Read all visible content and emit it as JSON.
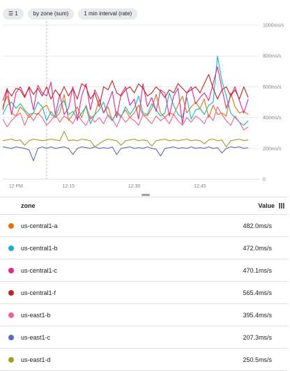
{
  "filters": {
    "filter_count": "1",
    "group_by": "by zone (sum)",
    "interval": "1 min interval (rate)"
  },
  "chart_data": {
    "type": "line",
    "y_ticks": [
      {
        "value": 1000,
        "label": "1000ms/s"
      },
      {
        "value": 800,
        "label": "800ms/s"
      },
      {
        "value": 600,
        "label": "600ms/s"
      },
      {
        "value": 400,
        "label": "400ms/s"
      },
      {
        "value": 200,
        "label": "200ms/s"
      },
      {
        "value": 0,
        "label": "0"
      }
    ],
    "ylim": [
      0,
      1000
    ],
    "x_ticks": [
      {
        "minute": 3,
        "label": "12 PM"
      },
      {
        "minute": 15,
        "label": "12:15"
      },
      {
        "minute": 30,
        "label": "12:30"
      },
      {
        "minute": 45,
        "label": "12:45"
      }
    ],
    "xlim": [
      0,
      56
    ],
    "cursor_minute": 10,
    "grid": true,
    "series": [
      {
        "name": "us-central1-a",
        "color": "#e8710a",
        "values": [
          470,
          540,
          430,
          410,
          470,
          440,
          400,
          430,
          420,
          460,
          480,
          420,
          400,
          430,
          550,
          380,
          420,
          470,
          400,
          480,
          390,
          420,
          520,
          430,
          470,
          380,
          440,
          410,
          450,
          400,
          430,
          480,
          420,
          410,
          460,
          550,
          430,
          400,
          430,
          420,
          480,
          540,
          430,
          470,
          500,
          460,
          520,
          400,
          480,
          420,
          430,
          410,
          560,
          470,
          430,
          440,
          420
        ]
      },
      {
        "name": "us-central1-b",
        "color": "#12b5cb",
        "values": [
          420,
          480,
          500,
          460,
          490,
          450,
          420,
          430,
          500,
          470,
          380,
          440,
          400,
          480,
          510,
          420,
          440,
          390,
          430,
          470,
          360,
          420,
          450,
          500,
          410,
          380,
          430,
          400,
          470,
          420,
          460,
          540,
          430,
          420,
          490,
          450,
          410,
          430,
          560,
          480,
          420,
          400,
          530,
          390,
          450,
          460,
          420,
          480,
          500,
          800,
          640,
          540,
          430,
          400,
          370,
          350,
          380
        ]
      },
      {
        "name": "us-central1-c",
        "color": "#e52592",
        "values": [
          510,
          590,
          420,
          560,
          600,
          540,
          590,
          450,
          610,
          560,
          540,
          630,
          420,
          550,
          420,
          460,
          600,
          380,
          540,
          620,
          450,
          580,
          520,
          430,
          490,
          570,
          400,
          550,
          600,
          480,
          520,
          390,
          620,
          470,
          530,
          440,
          580,
          560,
          410,
          540,
          590,
          360,
          560,
          600,
          490,
          530,
          560,
          510,
          620,
          730,
          590,
          460,
          540,
          600,
          510,
          430,
          520
        ]
      },
      {
        "name": "us-central1-f",
        "color": "#c5221f",
        "values": [
          450,
          580,
          540,
          590,
          580,
          530,
          600,
          550,
          590,
          540,
          600,
          520,
          580,
          540,
          600,
          540,
          590,
          520,
          620,
          600,
          520,
          560,
          470,
          600,
          580,
          640,
          560,
          540,
          580,
          600,
          560,
          620,
          590,
          540,
          560,
          600,
          570,
          530,
          580,
          560,
          620,
          590,
          560,
          580,
          600,
          560,
          620,
          680,
          590,
          520,
          580,
          600,
          540,
          580,
          520,
          600,
          530
        ]
      },
      {
        "name": "us-east1-b",
        "color": "#f06292",
        "values": [
          390,
          340,
          380,
          410,
          430,
          350,
          420,
          380,
          430,
          400,
          350,
          380,
          420,
          370,
          410,
          390,
          360,
          420,
          380,
          350,
          410,
          370,
          400,
          360,
          420,
          390,
          340,
          410,
          370,
          400,
          380,
          350,
          420,
          390,
          360,
          410,
          380,
          400,
          360,
          420,
          380,
          350,
          400,
          370,
          410,
          390,
          360,
          420,
          380,
          470,
          420,
          380,
          350,
          410,
          370,
          320,
          340
        ]
      },
      {
        "name": "us-east1-c",
        "color": "#5c6bc0",
        "values": [
          210,
          205,
          200,
          210,
          205,
          200,
          190,
          120,
          200,
          210,
          200,
          210,
          200,
          205,
          210,
          200,
          160,
          200,
          210,
          205,
          200,
          210,
          200,
          205,
          200,
          210,
          160,
          200,
          205,
          210,
          200,
          205,
          200,
          210,
          200,
          195,
          150,
          200,
          205,
          210,
          200,
          205,
          200,
          210,
          200,
          205,
          200,
          210,
          200,
          205,
          170,
          200,
          210,
          205,
          210,
          200,
          205
        ]
      },
      {
        "name": "us-east1-d",
        "color": "#9e9d24",
        "values": [
          250,
          255,
          260,
          250,
          255,
          220,
          250,
          260,
          255,
          250,
          255,
          260,
          255,
          250,
          310,
          250,
          255,
          250,
          260,
          255,
          250,
          210,
          230,
          250,
          260,
          255,
          250,
          220,
          250,
          255,
          260,
          250,
          255,
          250,
          215,
          250,
          255,
          260,
          250,
          255,
          250,
          255,
          260,
          250,
          255,
          250,
          230,
          255,
          260,
          250,
          255,
          210,
          250,
          255,
          260,
          250,
          255
        ]
      }
    ]
  },
  "table": {
    "col_zone": "zone",
    "col_value": "Value",
    "rows": [
      {
        "zone": "us-central1-a",
        "value": "482.0ms/s",
        "color": "#e8710a"
      },
      {
        "zone": "us-central1-b",
        "value": "472.0ms/s",
        "color": "#12b5cb"
      },
      {
        "zone": "us-central1-c",
        "value": "470.1ms/s",
        "color": "#e52592"
      },
      {
        "zone": "us-central1-f",
        "value": "565.4ms/s",
        "color": "#c5221f"
      },
      {
        "zone": "us-east1-b",
        "value": "395.4ms/s",
        "color": "#f06292"
      },
      {
        "zone": "us-east1-c",
        "value": "207.3ms/s",
        "color": "#5c6bc0"
      },
      {
        "zone": "us-east1-d",
        "value": "250.5ms/s",
        "color": "#9e9d24"
      }
    ]
  }
}
